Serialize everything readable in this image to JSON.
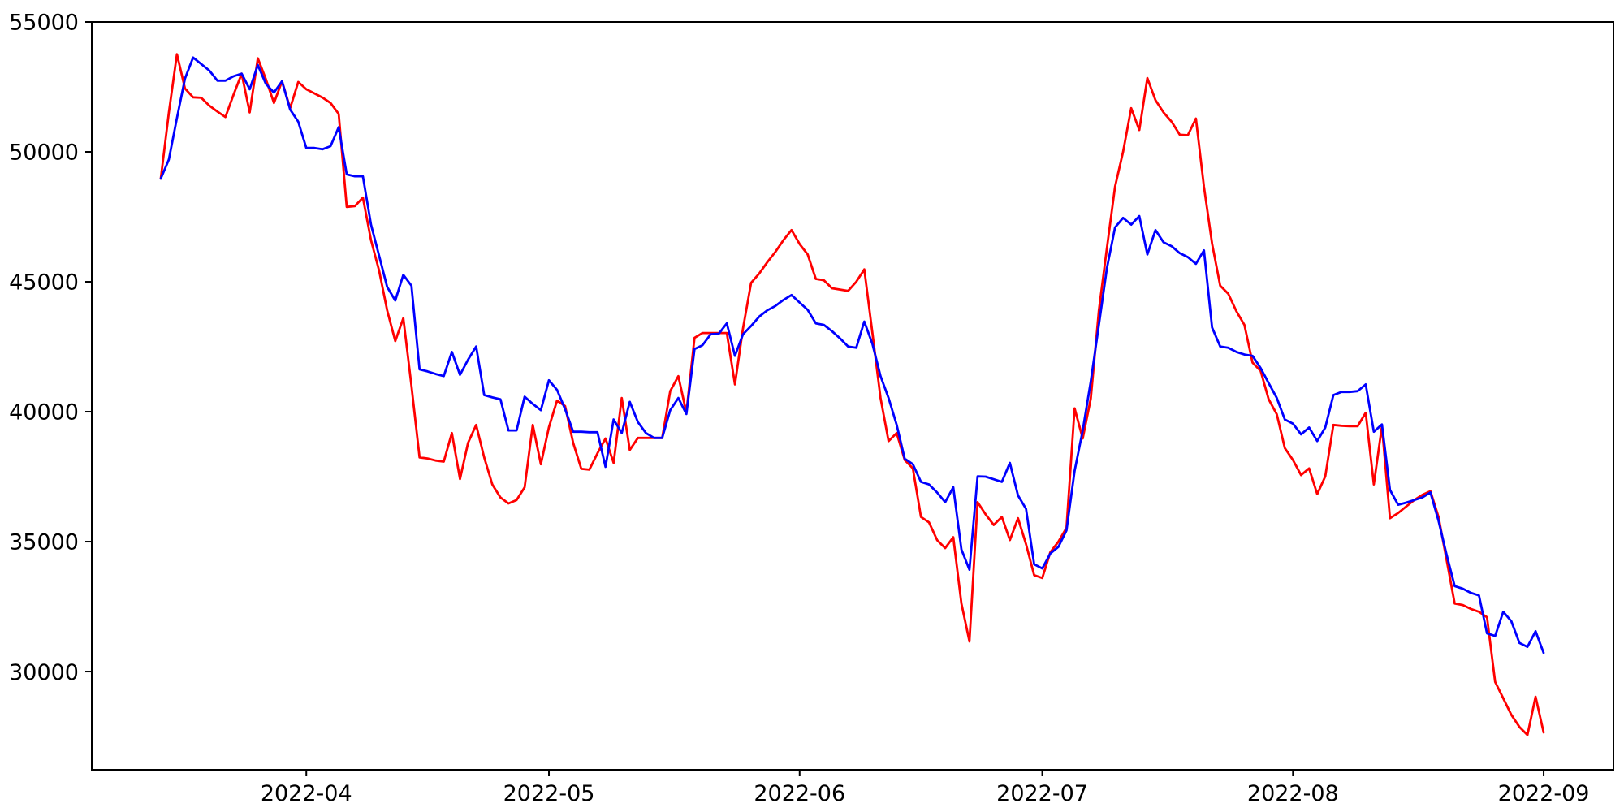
{
  "chart_data": {
    "type": "line",
    "title": "",
    "xlabel": "",
    "ylabel": "",
    "background": "#ffffff",
    "spine_color": "#000000",
    "grid": false,
    "legend": null,
    "x_start": "2022-03-14",
    "x_interval_days": 1,
    "n_points": 172,
    "xlim_days": [
      -8.53,
      179.63
    ],
    "ylim": [
      26220,
      55000
    ],
    "y_ticks": [
      30000,
      35000,
      40000,
      45000,
      50000,
      55000
    ],
    "x_ticks": [
      {
        "label": "2022-04",
        "date": "2022-04-01"
      },
      {
        "label": "2022-05",
        "date": "2022-05-01"
      },
      {
        "label": "2022-06",
        "date": "2022-06-01"
      },
      {
        "label": "2022-07",
        "date": "2022-07-01"
      },
      {
        "label": "2022-08",
        "date": "2022-08-01"
      },
      {
        "label": "2022-09",
        "date": "2022-09-01"
      }
    ],
    "series": [
      {
        "name": "red-series",
        "color": "#ff0000",
        "line_width": 2.8,
        "values": [
          48970,
          51500,
          53760,
          52440,
          52100,
          52080,
          51780,
          51550,
          51340,
          52200,
          53010,
          51520,
          53600,
          52800,
          51880,
          52720,
          51680,
          52690,
          52410,
          52250,
          52090,
          51880,
          51460,
          47880,
          47910,
          48240,
          46600,
          45430,
          43900,
          42720,
          43600,
          41000,
          38240,
          38200,
          38120,
          38080,
          39180,
          37410,
          38800,
          39490,
          38240,
          37200,
          36700,
          36470,
          36600,
          37090,
          39490,
          37980,
          39400,
          40430,
          40220,
          38800,
          37800,
          37770,
          38400,
          38970,
          38030,
          40530,
          38530,
          38990,
          38990,
          38990,
          38990,
          40790,
          41370,
          39960,
          42840,
          43030,
          43030,
          43030,
          43030,
          41050,
          43200,
          44960,
          45320,
          45750,
          46150,
          46600,
          46990,
          46450,
          46050,
          45110,
          45060,
          44750,
          44700,
          44650,
          45000,
          45480,
          43030,
          40530,
          38870,
          39180,
          38140,
          37820,
          35950,
          35740,
          35060,
          34750,
          35170,
          32620,
          31160,
          36520,
          36050,
          35640,
          35950,
          35060,
          35900,
          34900,
          33710,
          33600,
          34590,
          35000,
          35530,
          40130,
          38970,
          40500,
          43900,
          46300,
          48660,
          50000,
          51680,
          50840,
          52840,
          51990,
          51520,
          51160,
          50660,
          50640,
          51280,
          48660,
          46470,
          44850,
          44540,
          43870,
          43340,
          41890,
          41570,
          40480,
          39900,
          38600,
          38140,
          37560,
          37820,
          36830,
          37510,
          39490,
          39460,
          39440,
          39440,
          39960,
          37200,
          39440,
          35900,
          36100,
          36350,
          36600,
          36800,
          36940,
          35950,
          34300,
          32620,
          32560,
          32410,
          32300,
          32090,
          29600,
          28970,
          28340,
          27870,
          27560,
          29030,
          27660
        ]
      },
      {
        "name": "blue-series",
        "color": "#0000ff",
        "line_width": 2.8,
        "values": [
          48970,
          49700,
          51300,
          52820,
          53630,
          53380,
          53130,
          52740,
          52740,
          52910,
          53010,
          52410,
          53340,
          52620,
          52280,
          52720,
          51630,
          51160,
          50150,
          50150,
          50100,
          50220,
          50950,
          49130,
          49060,
          49060,
          47200,
          46000,
          44800,
          44280,
          45270,
          44850,
          41630,
          41550,
          41450,
          41370,
          42300,
          41420,
          42000,
          42510,
          40640,
          40550,
          40480,
          39280,
          39280,
          40580,
          40300,
          40060,
          41210,
          40840,
          40100,
          39230,
          39230,
          39210,
          39210,
          37880,
          39700,
          39180,
          40380,
          39600,
          39180,
          38990,
          38990,
          40060,
          40530,
          39910,
          42410,
          42560,
          42980,
          43000,
          43400,
          42150,
          42980,
          43300,
          43660,
          43900,
          44070,
          44300,
          44490,
          44200,
          43920,
          43400,
          43340,
          43100,
          42820,
          42510,
          42460,
          43470,
          42610,
          41370,
          40530,
          39490,
          38190,
          37980,
          37300,
          37200,
          36890,
          36520,
          37090,
          34700,
          33920,
          37510,
          37500,
          37400,
          37300,
          38030,
          36780,
          36260,
          34130,
          33970,
          34540,
          34800,
          35430,
          37720,
          39280,
          41160,
          43340,
          45530,
          47090,
          47460,
          47200,
          47530,
          46050,
          46990,
          46520,
          46370,
          46100,
          45950,
          45690,
          46210,
          43240,
          42510,
          42460,
          42300,
          42200,
          42150,
          41680,
          41100,
          40530,
          39700,
          39540,
          39130,
          39390,
          38870,
          39390,
          40640,
          40760,
          40760,
          40790,
          41050,
          39230,
          39510,
          36990,
          36420,
          36500,
          36600,
          36700,
          36890,
          35800,
          34500,
          33290,
          33190,
          33030,
          32930,
          31470,
          31370,
          32300,
          31940,
          31100,
          30950,
          31550,
          30720
        ]
      }
    ]
  }
}
